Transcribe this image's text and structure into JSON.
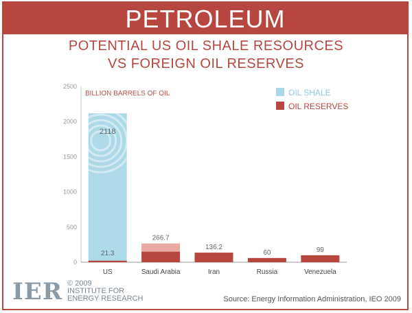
{
  "banner": {
    "title": "PETROLEUM"
  },
  "subtitle": {
    "line1": "POTENTIAL US OIL SHALE RESOURCES",
    "line2": "VS FOREIGN OIL RESERVES"
  },
  "colors": {
    "brand": "#b7473e",
    "oil_shale": "#a9d8e6",
    "oil_reserves": "#b7473e",
    "saudi_light": "#e8a9a4"
  },
  "chart_data": {
    "type": "bar",
    "title": "",
    "ylabel": "BILLION BARRELS OF OIL",
    "xlabel": "",
    "ylim": [
      0,
      2500
    ],
    "yticks": [
      0,
      500,
      1000,
      1500,
      2000,
      2500
    ],
    "ytick_labels": [
      "0",
      "500",
      "1000",
      "1500",
      "2000",
      "2500"
    ],
    "categories": [
      "US",
      "Saudi Arabia",
      "Iran",
      "Russia",
      "Venezuela"
    ],
    "series": [
      {
        "name": "OIL SHALE",
        "values": [
          2118,
          null,
          null,
          null,
          null
        ]
      },
      {
        "name": "OIL RESERVES",
        "values": [
          21.3,
          266.7,
          136.2,
          60,
          99
        ]
      }
    ],
    "data_labels": [
      "2118",
      "21.3",
      "266.7",
      "136.2",
      "60",
      "99"
    ],
    "legend_position": "top-right"
  },
  "footer": {
    "logo": "IER",
    "copyright": "© 2009",
    "org_line1": "INSTITUTE FOR",
    "org_line2": "ENERGY RESEARCH",
    "source": "Source: Energy Information Administration, IEO 2009"
  }
}
